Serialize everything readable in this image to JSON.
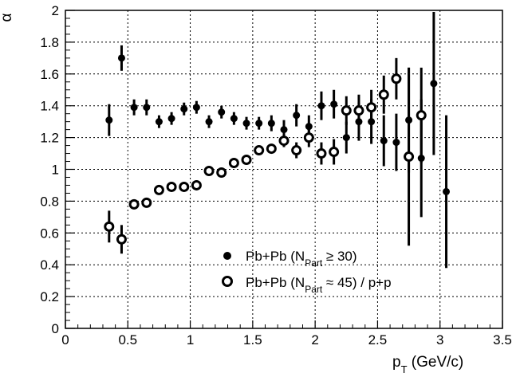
{
  "chart_data": {
    "type": "scatter",
    "title": "",
    "xlabel": {
      "main": "p",
      "sub": "T",
      "rest": " (GeV/c)"
    },
    "ylabel": "α",
    "xlim": [
      0,
      3.5
    ],
    "ylim": [
      0,
      2
    ],
    "xticks": [
      0,
      0.5,
      1,
      1.5,
      2,
      2.5,
      3,
      3.5
    ],
    "xtick_labels": [
      "0",
      "0.5",
      "1",
      "1.5",
      "2",
      "2.5",
      "3",
      "3.5"
    ],
    "yticks": [
      0,
      0.2,
      0.4,
      0.6,
      0.8,
      1,
      1.2,
      1.4,
      1.6,
      1.8,
      2
    ],
    "ytick_labels": [
      "0",
      "0.2",
      "0.4",
      "0.6",
      "0.8",
      "1",
      "1.2",
      "1.4",
      "1.6",
      "1.8",
      "2"
    ],
    "grid": true,
    "legend_position": "bottom-right",
    "series": [
      {
        "name": "Pb+Pb (N_Part ≥ 30)",
        "legend": {
          "pre": "Pb+Pb (N",
          "sub": "Part",
          "post": " ≥ 30)"
        },
        "marker": "filled-circle",
        "x": [
          0.35,
          0.45,
          0.55,
          0.65,
          0.75,
          0.85,
          0.95,
          1.05,
          1.15,
          1.25,
          1.35,
          1.45,
          1.55,
          1.65,
          1.75,
          1.85,
          1.95,
          2.05,
          2.15,
          2.25,
          2.35,
          2.45,
          2.55,
          2.65,
          2.75,
          2.85,
          2.95,
          3.05
        ],
        "y": [
          1.31,
          1.7,
          1.39,
          1.39,
          1.3,
          1.32,
          1.38,
          1.39,
          1.3,
          1.36,
          1.32,
          1.29,
          1.29,
          1.29,
          1.25,
          1.34,
          1.27,
          1.4,
          1.41,
          1.2,
          1.3,
          1.3,
          1.18,
          1.17,
          1.31,
          1.07,
          1.54,
          0.86
        ],
        "err": [
          0.1,
          0.08,
          0.05,
          0.05,
          0.04,
          0.04,
          0.04,
          0.04,
          0.04,
          0.04,
          0.04,
          0.04,
          0.04,
          0.05,
          0.06,
          0.07,
          0.07,
          0.09,
          0.09,
          0.1,
          0.12,
          0.14,
          0.16,
          0.18,
          0.33,
          0.37,
          0.45,
          0.48
        ]
      },
      {
        "name": "Pb+Pb (N_Part ≈ 45) / p+p",
        "legend": {
          "pre": "Pb+Pb (N",
          "sub": "Part",
          "post": " ≈ 45) / p+p"
        },
        "marker": "open-circle",
        "x": [
          0.35,
          0.45,
          0.55,
          0.65,
          0.75,
          0.85,
          0.95,
          1.05,
          1.15,
          1.25,
          1.35,
          1.45,
          1.55,
          1.65,
          1.75,
          1.85,
          1.95,
          2.05,
          2.15,
          2.25,
          2.35,
          2.45,
          2.55,
          2.65,
          2.75,
          2.85
        ],
        "y": [
          0.64,
          0.56,
          0.78,
          0.79,
          0.87,
          0.89,
          0.89,
          0.9,
          0.99,
          0.98,
          1.04,
          1.06,
          1.12,
          1.13,
          1.18,
          1.12,
          1.2,
          1.1,
          1.11,
          1.37,
          1.37,
          1.39,
          1.47,
          1.57,
          1.08,
          1.34
        ],
        "err": [
          0.1,
          0.09,
          0.03,
          0.03,
          0.03,
          0.03,
          0.03,
          0.03,
          0.03,
          0.03,
          0.03,
          0.03,
          0.03,
          0.03,
          0.04,
          0.05,
          0.06,
          0.07,
          0.08,
          0.09,
          0.1,
          0.11,
          0.12,
          0.13,
          0.56,
          0.3
        ]
      }
    ]
  }
}
